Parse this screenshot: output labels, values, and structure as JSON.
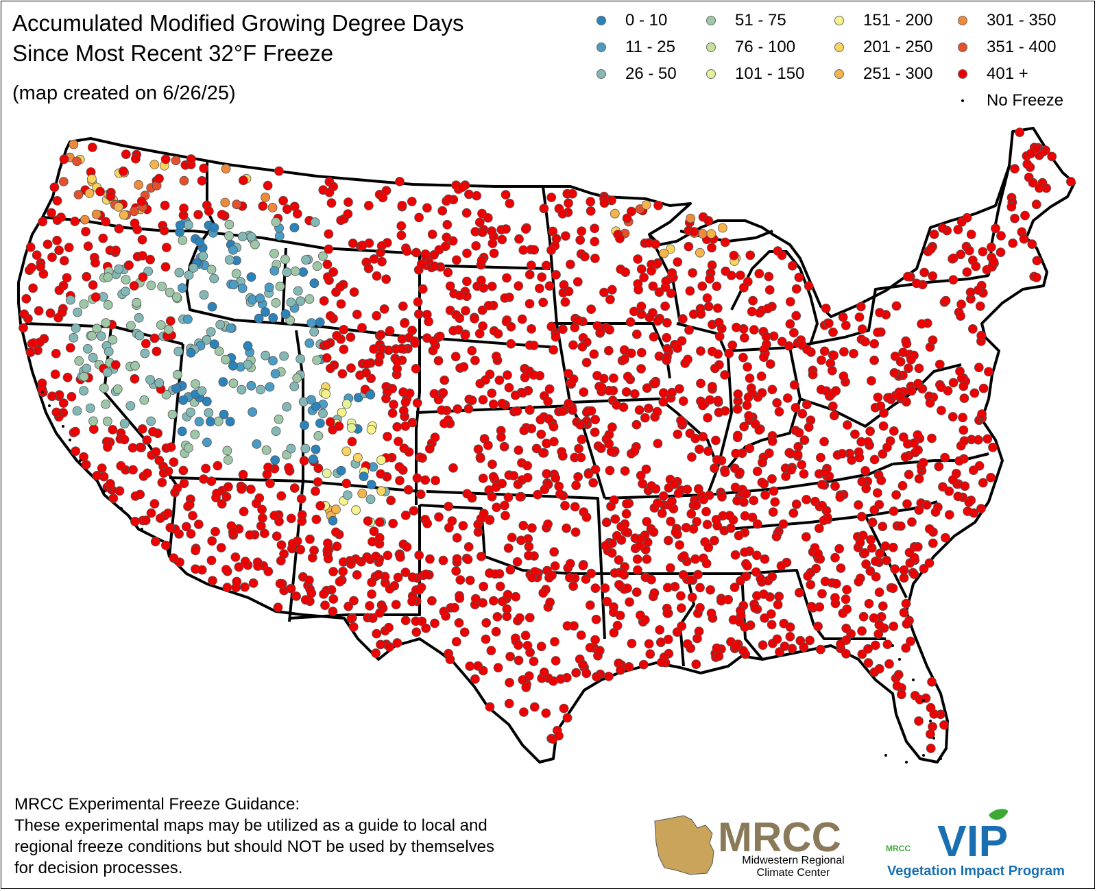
{
  "title_line1": "Accumulated Modified Growing Degree Days",
  "title_line2": "Since Most Recent 32°F Freeze",
  "subtitle": "(map created on 6/26/25)",
  "legend": [
    {
      "label": "0 - 10",
      "color": "#2b83ba"
    },
    {
      "label": "11 - 25",
      "color": "#4a9cc4"
    },
    {
      "label": "26 - 50",
      "color": "#84b8b6"
    },
    {
      "label": "51 - 75",
      "color": "#9dc7a7"
    },
    {
      "label": "76 - 100",
      "color": "#c6e29a"
    },
    {
      "label": "101 - 150",
      "color": "#e6f29a"
    },
    {
      "label": "151 - 200",
      "color": "#f7f28a"
    },
    {
      "label": "201 - 250",
      "color": "#f9d45e"
    },
    {
      "label": "251 - 300",
      "color": "#f6b44a"
    },
    {
      "label": "301 - 350",
      "color": "#ee8a3a"
    },
    {
      "label": "351 - 400",
      "color": "#e4502c"
    },
    {
      "label": "401 +",
      "color": "#ee0000"
    },
    {
      "label": "No Freeze",
      "color": "#000000"
    }
  ],
  "footer_lines": [
    "MRCC Experimental Freeze Guidance:",
    "These experimental maps may be utilized as a guide to local and",
    "regional freeze conditions but should NOT be used by themselves",
    "for decision processes."
  ],
  "logo_mrcc": {
    "name": "MRCC",
    "line1": "Midwestern Regional",
    "line2": "Climate Center"
  },
  "logo_vip": {
    "small": "MRCC",
    "name": "VIP",
    "tagline": "Vegetation Impact Program"
  }
}
